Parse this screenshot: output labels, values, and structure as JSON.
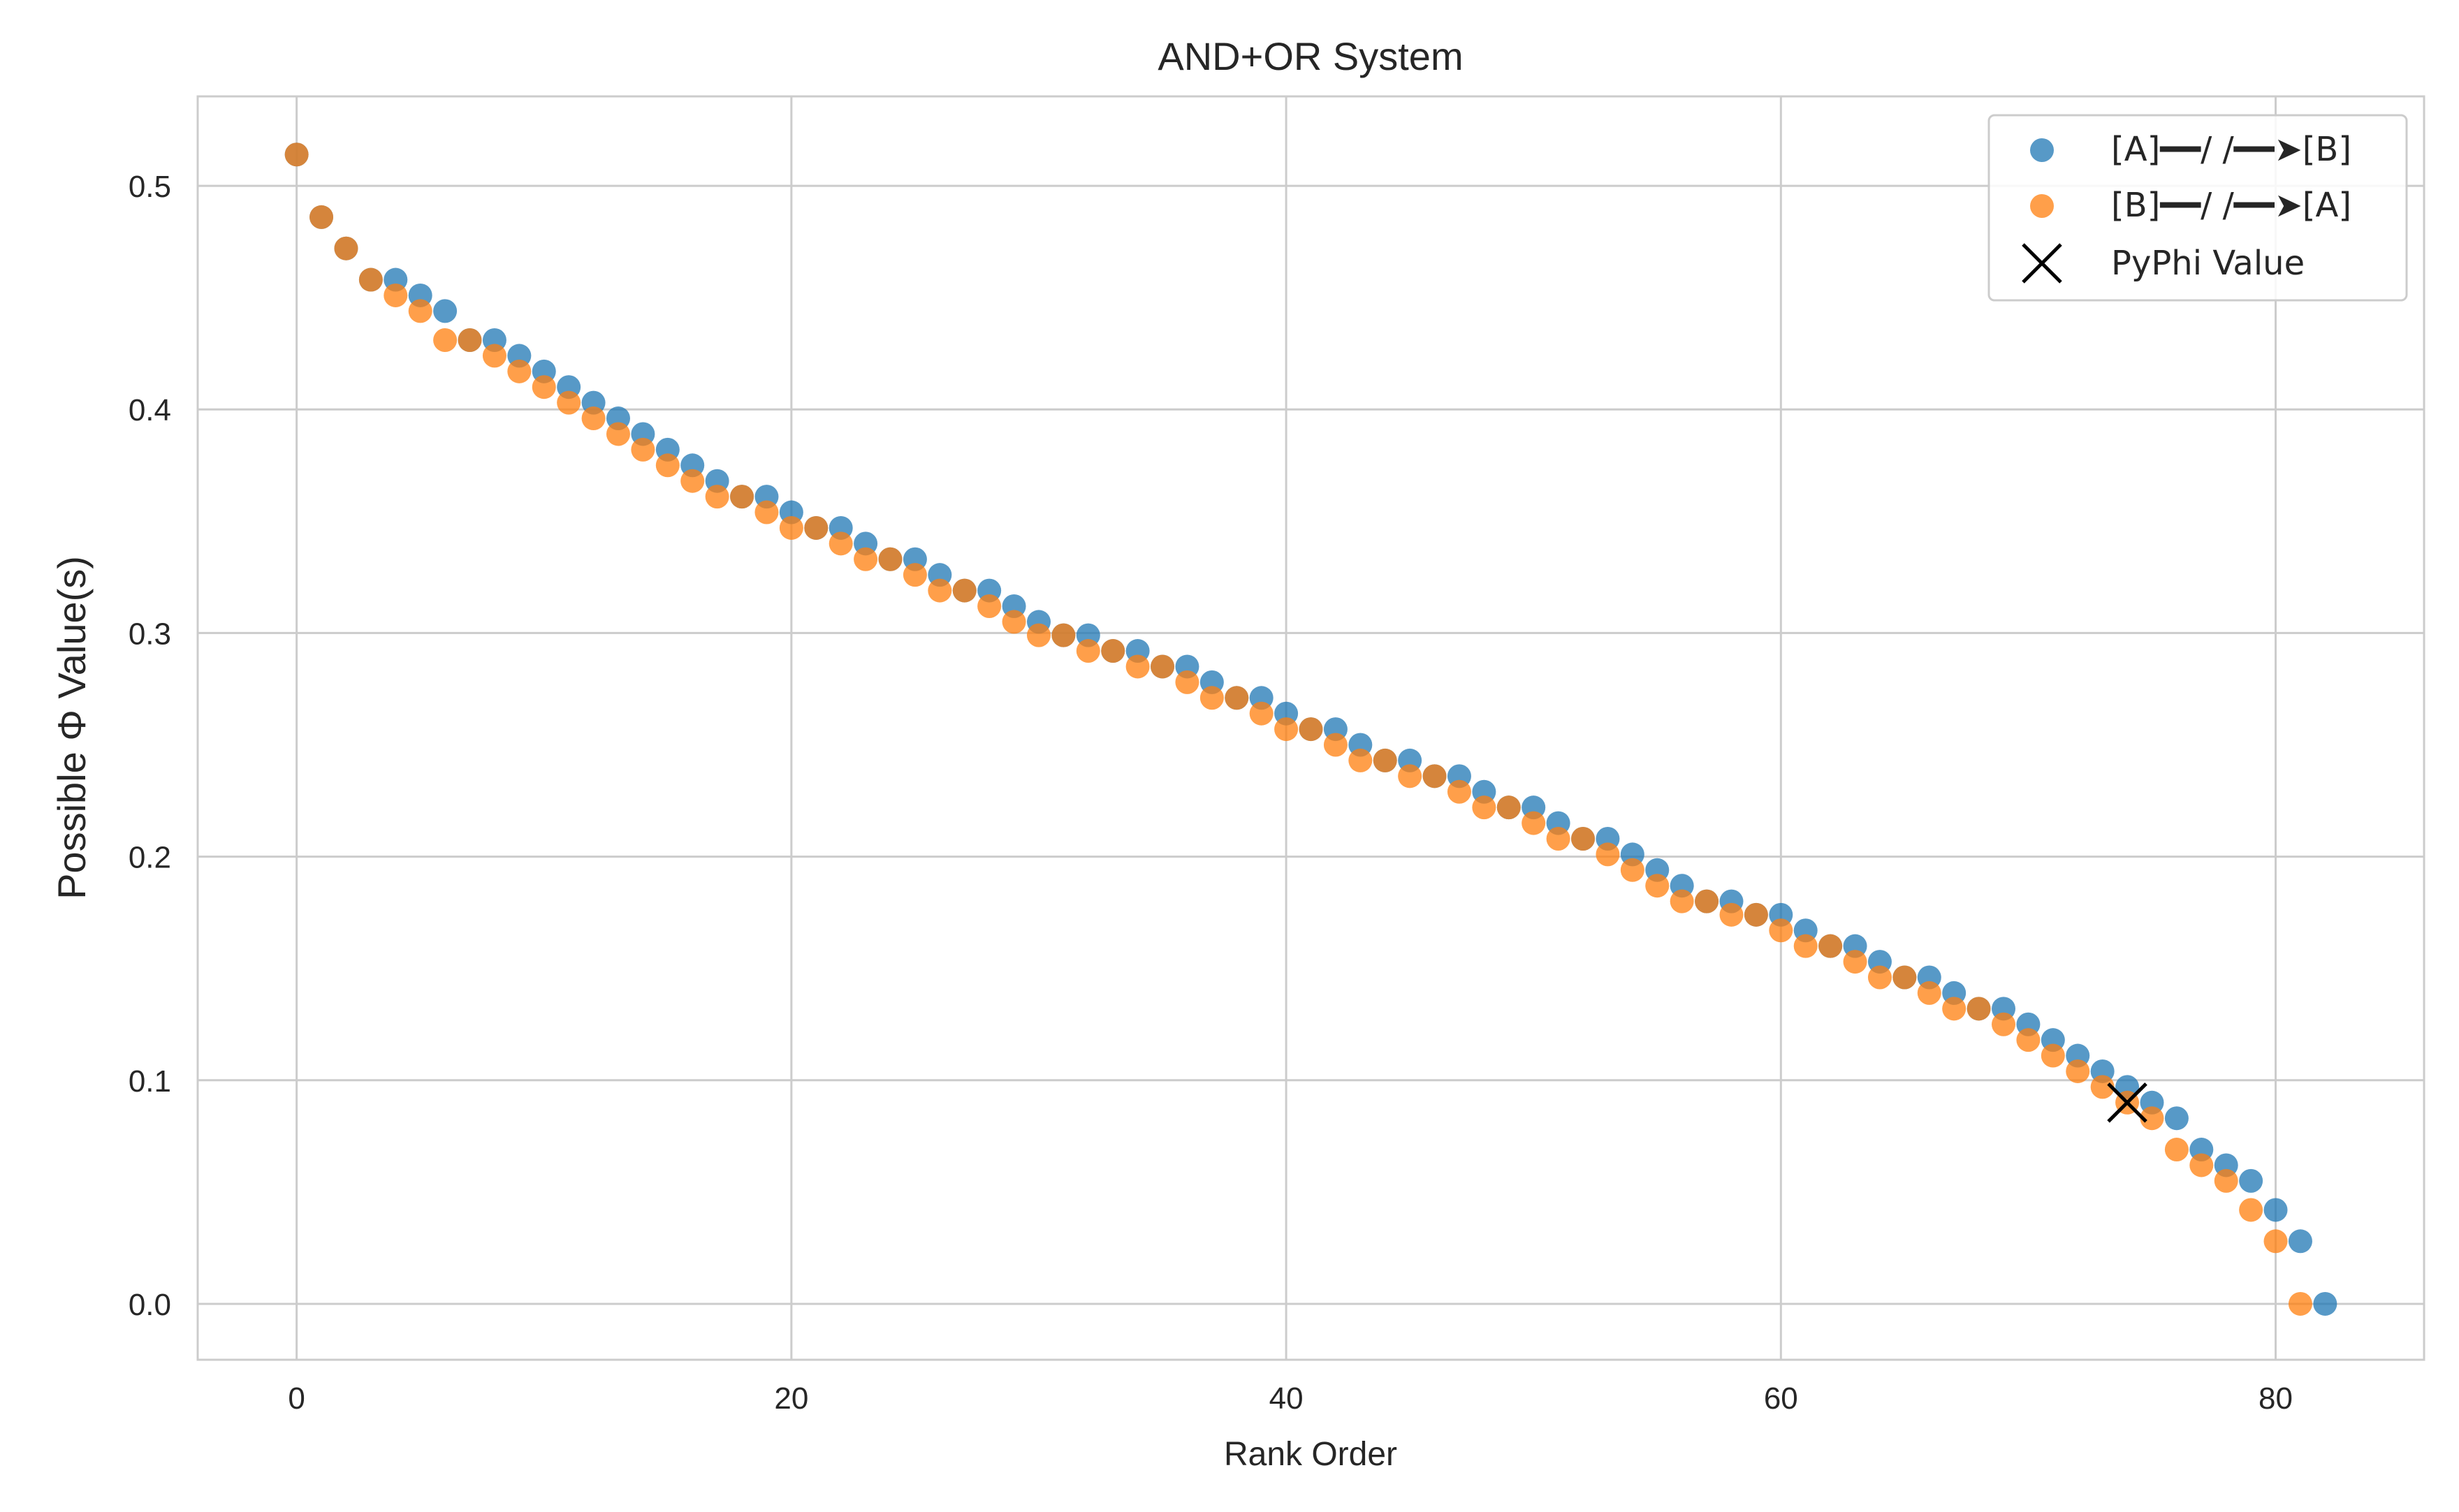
{
  "chart_data": {
    "type": "scatter",
    "title": "AND+OR System",
    "xlabel": "Rank Order",
    "ylabel": "Possible Φ Value(s)",
    "xlim": [
      -4,
      86
    ],
    "ylim": [
      -0.025,
      0.54
    ],
    "xticks": [
      0,
      20,
      40,
      60,
      80
    ],
    "xtick_labels": [
      "0",
      "20",
      "40",
      "60",
      "80"
    ],
    "yticks": [
      0.0,
      0.1,
      0.2,
      0.3,
      0.4,
      0.5
    ],
    "ytick_labels": [
      "0.0",
      "0.1",
      "0.2",
      "0.3",
      "0.4",
      "0.5"
    ],
    "grid": true,
    "legend_position": "top-right",
    "series": [
      {
        "name": "[A]━━/ /━━➤[B]",
        "color": "#1f77b4",
        "marker": "circle",
        "y": [
          0.514,
          0.486,
          0.472,
          0.458,
          0.458,
          0.451,
          0.444,
          0.431,
          0.431,
          0.424,
          0.417,
          0.41,
          0.403,
          0.396,
          0.389,
          0.382,
          0.375,
          0.368,
          0.361,
          0.361,
          0.354,
          0.347,
          0.347,
          0.34,
          0.333,
          0.333,
          0.326,
          0.319,
          0.319,
          0.312,
          0.305,
          0.299,
          0.299,
          0.292,
          0.292,
          0.285,
          0.285,
          0.278,
          0.271,
          0.271,
          0.264,
          0.257,
          0.257,
          0.25,
          0.243,
          0.243,
          0.236,
          0.236,
          0.229,
          0.222,
          0.222,
          0.215,
          0.208,
          0.208,
          0.201,
          0.194,
          0.187,
          0.18,
          0.18,
          0.174,
          0.174,
          0.167,
          0.16,
          0.16,
          0.153,
          0.146,
          0.146,
          0.139,
          0.132,
          0.132,
          0.125,
          0.118,
          0.111,
          0.104,
          0.097,
          0.09,
          0.083,
          0.069,
          0.062,
          0.055,
          0.042,
          0.028,
          0.0
        ]
      },
      {
        "name": "[B]━━/ /━━➤[A]",
        "color": "#ff7f0e",
        "marker": "circle",
        "y": [
          0.514,
          0.486,
          0.472,
          0.458,
          0.451,
          0.444,
          0.431,
          0.431,
          0.424,
          0.417,
          0.41,
          0.403,
          0.396,
          0.389,
          0.382,
          0.375,
          0.368,
          0.361,
          0.361,
          0.354,
          0.347,
          0.347,
          0.34,
          0.333,
          0.333,
          0.326,
          0.319,
          0.319,
          0.312,
          0.305,
          0.299,
          0.299,
          0.292,
          0.292,
          0.285,
          0.285,
          0.278,
          0.271,
          0.271,
          0.264,
          0.257,
          0.257,
          0.25,
          0.243,
          0.243,
          0.236,
          0.236,
          0.229,
          0.222,
          0.222,
          0.215,
          0.208,
          0.208,
          0.201,
          0.194,
          0.187,
          0.18,
          0.18,
          0.174,
          0.174,
          0.167,
          0.16,
          0.16,
          0.153,
          0.146,
          0.146,
          0.139,
          0.132,
          0.132,
          0.125,
          0.118,
          0.111,
          0.104,
          0.097,
          0.09,
          0.083,
          0.069,
          0.062,
          0.055,
          0.042,
          0.028,
          0.0
        ]
      }
    ],
    "annotations": [
      {
        "name": "PyPhi Value",
        "marker": "x",
        "color": "#000000",
        "x": 74,
        "y": 0.09
      }
    ]
  }
}
